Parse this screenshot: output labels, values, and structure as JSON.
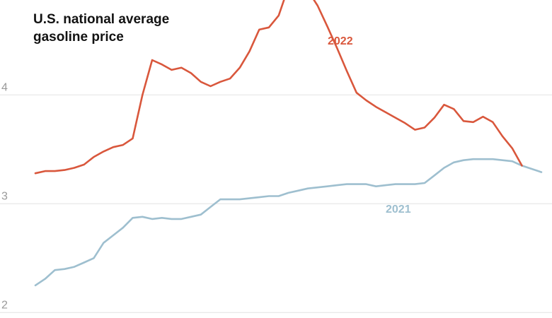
{
  "chart_data": {
    "type": "line",
    "title": "U.S. national average gasoline price",
    "xlabel": "",
    "ylabel": "",
    "y_ticks": [
      "2",
      "3",
      "4"
    ],
    "ylim": [
      1.95,
      4.95
    ],
    "weeks": 53,
    "grid": true,
    "series": [
      {
        "name": "2022",
        "color": "#d9573c",
        "x": [
          0,
          1,
          2,
          3,
          4,
          5,
          6,
          7,
          8,
          9,
          10,
          11,
          12,
          13,
          14,
          15,
          16,
          17,
          18,
          19,
          20,
          21,
          22,
          23,
          24,
          25,
          26,
          27,
          28,
          29,
          30,
          31,
          32,
          33,
          34,
          35,
          36,
          37,
          38,
          39,
          40,
          41,
          42,
          43,
          44,
          45,
          46,
          47,
          48,
          49,
          50
        ],
        "values": [
          3.28,
          3.3,
          3.3,
          3.31,
          3.33,
          3.36,
          3.43,
          3.48,
          3.52,
          3.54,
          3.6,
          4.0,
          4.32,
          4.28,
          4.23,
          4.25,
          4.2,
          4.12,
          4.08,
          4.12,
          4.15,
          4.25,
          4.4,
          4.6,
          4.62,
          4.73,
          4.99,
          5.01,
          4.96,
          4.82,
          4.63,
          4.43,
          4.22,
          4.02,
          3.95,
          3.89,
          3.84,
          3.79,
          3.74,
          3.68,
          3.7,
          3.79,
          3.91,
          3.87,
          3.76,
          3.75,
          3.8,
          3.75,
          3.62,
          3.51,
          3.35
        ]
      },
      {
        "name": "2021",
        "color": "#9ebfcf",
        "x": [
          0,
          1,
          2,
          3,
          4,
          5,
          6,
          7,
          8,
          9,
          10,
          11,
          12,
          13,
          14,
          15,
          16,
          17,
          18,
          19,
          20,
          21,
          22,
          23,
          24,
          25,
          26,
          27,
          28,
          29,
          30,
          31,
          32,
          33,
          34,
          35,
          36,
          37,
          38,
          39,
          40,
          41,
          42,
          43,
          44,
          45,
          46,
          47,
          48,
          49,
          50,
          51,
          52
        ],
        "values": [
          2.25,
          2.31,
          2.39,
          2.4,
          2.42,
          2.46,
          2.5,
          2.64,
          2.71,
          2.78,
          2.87,
          2.88,
          2.86,
          2.87,
          2.86,
          2.86,
          2.88,
          2.9,
          2.97,
          3.04,
          3.04,
          3.04,
          3.05,
          3.06,
          3.07,
          3.07,
          3.1,
          3.12,
          3.14,
          3.15,
          3.16,
          3.17,
          3.18,
          3.18,
          3.18,
          3.16,
          3.17,
          3.18,
          3.18,
          3.18,
          3.19,
          3.26,
          3.33,
          3.38,
          3.4,
          3.41,
          3.41,
          3.41,
          3.4,
          3.39,
          3.35,
          3.32,
          3.29
        ]
      }
    ]
  }
}
